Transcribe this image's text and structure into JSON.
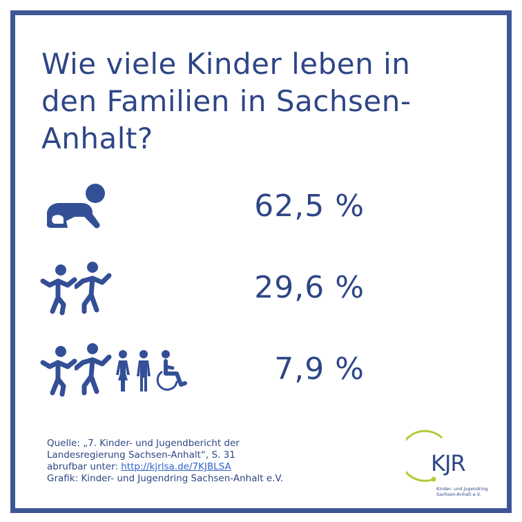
{
  "title_lines": [
    "Wie viele Kinder leben in",
    "den Familien in Sachsen-",
    "Anhalt?"
  ],
  "rows": [
    {
      "icons": [
        "crawling-baby-icon"
      ],
      "percent": "62,5 %"
    },
    {
      "icons": [
        "dancing-child-icon",
        "dancing-child-icon"
      ],
      "percent": "29,6 %"
    },
    {
      "icons": [
        "dancing-child-icon",
        "dancing-child-icon",
        "girl-icon",
        "boy-icon",
        "wheelchair-user-icon"
      ],
      "percent": "7,9 %"
    }
  ],
  "source": {
    "line1": "Quelle: „7. Kinder- und Jugendbericht der",
    "line2": "Landesregierung Sachsen-Anhalt“, S. 31",
    "line3_prefix": "abrufbar unter: ",
    "link": "http://kjrlsa.de/7KJBLSA",
    "line4": "Grafik: Kinder- und Jugendring Sachsen-Anhalt e.V."
  },
  "logo": {
    "mark": "KJR",
    "text_line1": "Kinder- und Jugendring",
    "text_line2": "Sachsen-Anhalt e.V."
  },
  "colors": {
    "frame": "#3d5696",
    "text": "#2e4686",
    "icon": "#334f96",
    "logo_green": "#b5c936",
    "link": "#2e63c9"
  }
}
